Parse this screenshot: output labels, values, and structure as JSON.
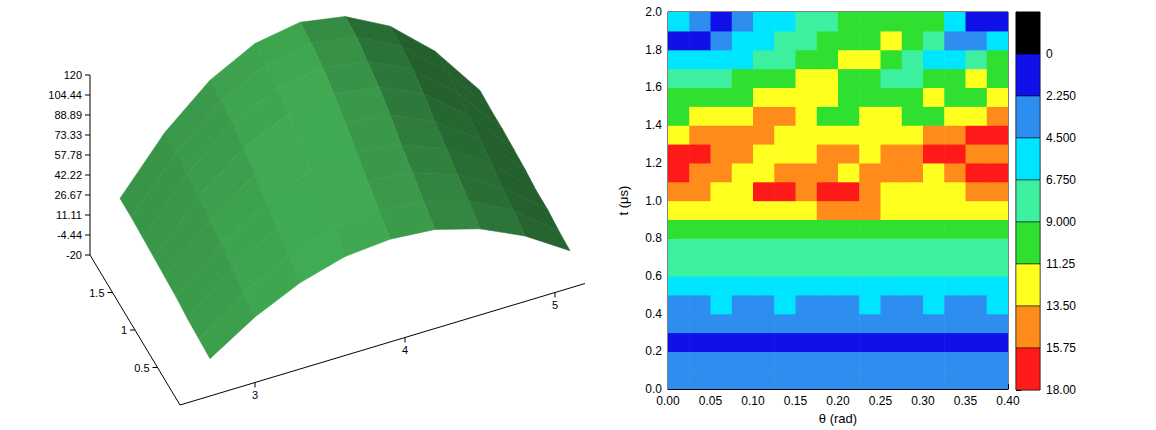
{
  "chart_data": [
    {
      "type": "surface",
      "color": "#3a9a4a",
      "x": [
        2.7,
        3,
        3.3,
        3.6,
        3.9,
        4.2,
        4.5,
        4.8,
        5.1
      ],
      "y": [
        0,
        0.25,
        0.5,
        0.75,
        1,
        1.25,
        1.5,
        1.75,
        2
      ],
      "z": [
        [
          9,
          31,
          47,
          57,
          60,
          57,
          47,
          31,
          9
        ],
        [
          10,
          35,
          54,
          65,
          68,
          64,
          54,
          36,
          10
        ],
        [
          11,
          40,
          60,
          72,
          76,
          72,
          60,
          39,
          12
        ],
        [
          13,
          44,
          66,
          80,
          84,
          79,
          66,
          44,
          12
        ],
        [
          14,
          48,
          73,
          87,
          92,
          88,
          72,
          48,
          14
        ],
        [
          15,
          52,
          79,
          95,
          100,
          95,
          79,
          52,
          15
        ],
        [
          16,
          55,
          84,
          101,
          106,
          100,
          84,
          55,
          16
        ],
        [
          17,
          57,
          87,
          104,
          110,
          105,
          87,
          57,
          16
        ],
        [
          17,
          58,
          88,
          106,
          112,
          106,
          88,
          58,
          17
        ]
      ],
      "xlim": [
        2.5,
        5.2
      ],
      "ylim": [
        0,
        2
      ],
      "zlim": [
        -20,
        120
      ],
      "xticks": [
        3,
        4,
        5
      ],
      "yticks": [
        0.5,
        1,
        1.5
      ],
      "zticks": [
        120,
        104.44,
        88.89,
        73.33,
        57.78,
        42.22,
        26.67,
        11.11,
        -4.44,
        -20
      ]
    },
    {
      "type": "contour",
      "xlabel": "θ (rad)",
      "ylabel": "t (μs)",
      "xlim": [
        0,
        0.4
      ],
      "ylim": [
        0,
        2
      ],
      "xticks": [
        {
          "value": 0,
          "label": "0.00"
        },
        {
          "value": 0.05,
          "label": "0.05"
        },
        {
          "value": 0.1,
          "label": "0.10"
        },
        {
          "value": 0.15,
          "label": "0.15"
        },
        {
          "value": 0.2,
          "label": "0.20"
        },
        {
          "value": 0.25,
          "label": "0.25"
        },
        {
          "value": 0.3,
          "label": "0.30"
        },
        {
          "value": 0.35,
          "label": "0.35"
        },
        {
          "value": 0.4,
          "label": "0.40"
        }
      ],
      "yticks": [
        {
          "value": 0,
          "label": "0.0"
        },
        {
          "value": 0.2,
          "label": "0.2"
        },
        {
          "value": 0.4,
          "label": "0.4"
        },
        {
          "value": 0.6,
          "label": "0.6"
        },
        {
          "value": 0.8,
          "label": "0.8"
        },
        {
          "value": 1,
          "label": "1.0"
        },
        {
          "value": 1.2,
          "label": "1.2"
        },
        {
          "value": 1.4,
          "label": "1.4"
        },
        {
          "value": 1.6,
          "label": "1.6"
        },
        {
          "value": 1.8,
          "label": "1.8"
        },
        {
          "value": 2,
          "label": "2.0"
        }
      ],
      "x_edges": [
        0,
        0.025,
        0.05,
        0.075,
        0.1,
        0.125,
        0.15,
        0.175,
        0.2,
        0.225,
        0.25,
        0.275,
        0.3,
        0.325,
        0.35,
        0.375,
        0.4
      ],
      "y_edges": [
        0,
        0.1,
        0.2,
        0.3,
        0.4,
        0.5,
        0.6,
        0.7,
        0.8,
        0.9,
        1,
        1.1,
        1.2,
        1.3,
        1.4,
        1.5,
        1.6,
        1.7,
        1.8,
        1.9,
        2
      ],
      "values": [
        [
          3.1,
          3.0,
          3.2,
          3.0,
          2.9,
          3.1,
          3.0,
          3.2,
          3.1,
          2.9,
          3.0,
          3.1,
          3.2,
          3.0,
          3.1,
          2.9
        ],
        [
          3.4,
          3.6,
          3.5,
          3.3,
          3.6,
          3.5,
          3.4,
          3.7,
          3.5,
          3.3,
          3.6,
          3.5,
          3.4,
          3.6,
          3.5,
          3.4
        ],
        [
          1.5,
          1.8,
          1.5,
          1.6,
          1.7,
          1.5,
          1.8,
          1.5,
          1.6,
          1.5,
          1.7,
          1.5,
          1.8,
          1.6,
          1.5,
          1.7
        ],
        [
          3.5,
          3.3,
          3.6,
          3.4,
          3.5,
          3.7,
          3.3,
          3.5,
          3.6,
          3.4,
          3.5,
          3.3,
          3.6,
          3.5,
          3.4,
          3.6
        ],
        [
          4.2,
          4.0,
          4.6,
          4.3,
          4.1,
          4.7,
          4.2,
          4.0,
          4.4,
          4.6,
          4.1,
          4.3,
          4.7,
          4.2,
          4.0,
          4.5
        ],
        [
          5.8,
          6.0,
          5.6,
          6.2,
          5.9,
          5.7,
          6.1,
          6.3,
          5.8,
          6.0,
          5.7,
          6.2,
          5.9,
          6.0,
          5.6,
          6.1
        ],
        [
          7.0,
          7.2,
          6.8,
          7.1,
          7.3,
          6.9,
          7.0,
          7.4,
          7.1,
          6.8,
          7.2,
          7.0,
          6.9,
          7.3,
          7.1,
          7.0
        ],
        [
          8.2,
          8.5,
          8.0,
          8.7,
          8.3,
          8.1,
          8.6,
          8.4,
          8.2,
          8.8,
          8.3,
          8.0,
          8.5,
          8.6,
          8.2,
          8.4
        ],
        [
          10,
          10.5,
          9.5,
          9.8,
          10,
          9.5,
          9.6,
          10.2,
          9.8,
          9.5,
          9.7,
          10,
          9.6,
          9.4,
          9.8,
          10.3
        ],
        [
          12.5,
          12.5,
          12,
          12,
          13,
          13,
          12.5,
          14,
          14,
          14,
          12,
          12,
          11.5,
          12.5,
          12.5,
          13
        ],
        [
          14,
          13.5,
          12,
          13,
          16,
          16,
          14,
          16,
          16.5,
          14,
          13,
          12,
          12.5,
          13,
          14.5,
          15
        ],
        [
          16,
          15,
          14,
          12.5,
          13,
          14,
          15,
          14,
          13,
          14.5,
          15.5,
          14,
          13,
          14,
          16,
          17
        ],
        [
          17,
          16.5,
          15,
          14,
          12.5,
          12,
          13,
          14,
          13.5,
          12.5,
          14,
          15.5,
          16.5,
          16,
          14.5,
          14
        ],
        [
          13,
          14,
          15.5,
          15,
          14,
          12.5,
          11.5,
          12,
          13,
          12,
          11.5,
          12.5,
          14,
          15.5,
          16.5,
          16
        ],
        [
          11,
          12,
          12,
          13,
          14,
          13.5,
          12,
          10.5,
          10,
          11.5,
          12,
          11,
          11,
          12,
          13,
          14
        ],
        [
          9.5,
          10,
          10.5,
          11,
          11.5,
          12,
          12.5,
          11.5,
          10,
          9,
          9.5,
          10.5,
          11.5,
          11,
          10.5,
          11.5
        ],
        [
          8,
          7.5,
          8.5,
          9.5,
          10,
          10.5,
          11.5,
          12,
          11,
          9,
          7.5,
          8,
          9.5,
          11,
          12,
          11
        ],
        [
          5.5,
          4.5,
          5,
          6.5,
          7.5,
          8.5,
          9.5,
          10.5,
          11.5,
          12,
          10,
          7,
          5,
          6,
          8,
          10
        ],
        [
          1.5,
          2,
          3.5,
          5,
          6,
          7,
          8,
          9.5,
          10,
          10.5,
          11.5,
          10,
          7,
          4,
          3.5,
          5.5
        ],
        [
          6,
          4,
          2,
          3,
          4.5,
          5.5,
          7,
          8,
          9.5,
          10,
          10,
          11,
          9,
          6,
          2,
          1.5
        ]
      ],
      "colorbar": {
        "range": [
          -2.25,
          18
        ],
        "ticks": [
          0,
          {
            "value": 2.25,
            "label": "2.250"
          },
          {
            "value": 4.5,
            "label": "4.500"
          },
          {
            "value": 6.75,
            "label": "6.750"
          },
          {
            "value": 9,
            "label": "9.000"
          },
          11.25,
          {
            "value": 13.5,
            "label": "13.50"
          },
          15.75,
          {
            "value": 18,
            "label": "18.00"
          }
        ],
        "colors": [
          "#000000",
          "#1010e8",
          "#2e8ef0",
          "#00e5ff",
          "#3cf0a0",
          "#30e030",
          "#ffff20",
          "#ff8c1a",
          "#ff1a1a"
        ]
      }
    }
  ]
}
